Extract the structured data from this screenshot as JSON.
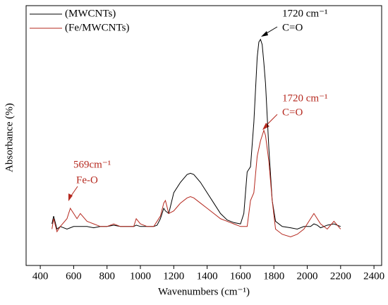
{
  "chart_data": {
    "type": "line",
    "xlabel": "Wavenumbers (cm⁻¹)",
    "ylabel": "Absorbance (%)",
    "xlim": [
      315,
      2446
    ],
    "xticks": [
      400,
      600,
      800,
      1000,
      1200,
      1400,
      1600,
      1800,
      2000,
      2200,
      2400
    ],
    "ylim": [
      0,
      100
    ],
    "legend": "upper left",
    "x": [
      470,
      480,
      500,
      520,
      560,
      580,
      600,
      620,
      640,
      680,
      720,
      760,
      800,
      840,
      880,
      920,
      960,
      975,
      1000,
      1040,
      1080,
      1100,
      1120,
      1140,
      1150,
      1170,
      1200,
      1240,
      1280,
      1300,
      1320,
      1360,
      1400,
      1440,
      1480,
      1520,
      1560,
      1600,
      1620,
      1640,
      1660,
      1680,
      1700,
      1710,
      1720,
      1730,
      1740,
      1750,
      1770,
      1790,
      1810,
      1850,
      1900,
      1940,
      1980,
      2020,
      2040,
      2060,
      2080,
      2120,
      2160,
      2200
    ],
    "series": [
      {
        "name": "(MWCNTs)",
        "color": "#000000",
        "values": [
          16,
          19,
          14,
          15,
          14,
          14.5,
          15,
          15,
          15,
          15,
          14.5,
          15,
          15,
          15.5,
          15,
          15,
          15,
          15.5,
          15,
          15,
          15,
          15.5,
          18,
          22,
          21,
          20,
          28,
          32,
          35,
          35.5,
          35,
          32,
          28,
          24,
          20,
          17.5,
          16.5,
          16,
          20,
          36,
          38,
          55,
          80,
          86,
          87,
          85,
          78,
          70,
          45,
          25,
          17,
          15,
          14.5,
          14,
          15,
          15,
          16,
          15.5,
          14.5,
          15.5,
          16,
          15
        ]
      },
      {
        "name": "(Fe/MWCNTs)",
        "color": "#b5281e",
        "values": [
          14,
          18,
          13,
          15,
          18,
          22,
          20,
          18,
          20,
          17,
          16,
          15,
          15,
          16,
          15,
          15,
          15,
          18,
          16,
          15,
          15,
          17,
          19,
          24,
          25,
          20,
          21,
          24,
          26,
          26.5,
          26,
          24,
          22,
          20,
          18,
          17,
          16,
          15,
          15,
          15,
          25,
          28,
          42,
          45,
          48,
          50,
          52,
          50,
          40,
          25,
          14,
          12,
          11,
          12,
          14,
          18,
          20,
          18,
          16,
          14,
          17,
          14
        ]
      }
    ],
    "annotations": [
      {
        "lines": [
          "1720 cm⁻¹",
          "C=O"
        ],
        "color": "#000000"
      },
      {
        "lines": [
          "1720 cm⁻¹",
          "C=O"
        ],
        "color": "#b5281e"
      },
      {
        "lines": [
          "569cm⁻¹",
          "Fe-O"
        ],
        "color": "#b5281e"
      }
    ]
  }
}
